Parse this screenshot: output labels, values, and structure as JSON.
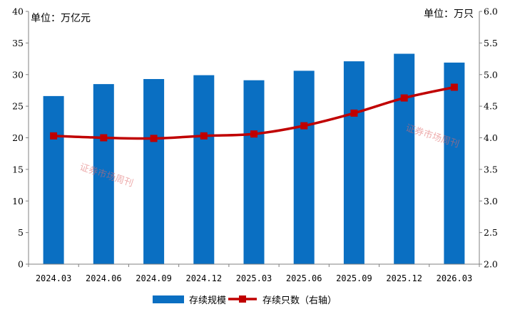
{
  "chart_data": {
    "type": "bar",
    "categories": [
      "2024.03",
      "2024.06",
      "2024.09",
      "2024.12",
      "2025.03",
      "2025.06",
      "2025.09",
      "2025.12",
      "2026.03"
    ],
    "series": [
      {
        "name": "存续规模",
        "type": "bar",
        "axis": "left",
        "color": "#0a6fc2",
        "values": [
          26.6,
          28.5,
          29.3,
          29.9,
          29.1,
          30.6,
          32.1,
          33.3,
          31.9
        ]
      },
      {
        "name": "存续只数（右轴）",
        "type": "line",
        "axis": "right",
        "color": "#c00000",
        "values": [
          4.03,
          4.0,
          3.99,
          4.03,
          4.06,
          4.19,
          4.39,
          4.63,
          4.8
        ]
      }
    ],
    "left_axis": {
      "unit_label": "单位：万亿元",
      "range": [
        0,
        40
      ],
      "ticks": [
        "0",
        "5",
        "10",
        "15",
        "20",
        "25",
        "30",
        "35",
        "40"
      ]
    },
    "right_axis": {
      "unit_label": "单位：万只",
      "range": [
        2.0,
        6.0
      ],
      "ticks": [
        "2.0",
        "2.5",
        "3.0",
        "3.5",
        "4.0",
        "4.5",
        "5.0",
        "5.5",
        "6.0"
      ]
    },
    "grid": false,
    "legend_position": "bottom-center",
    "watermarks": [
      "证券市场周刊",
      "证券市场周刊"
    ]
  }
}
